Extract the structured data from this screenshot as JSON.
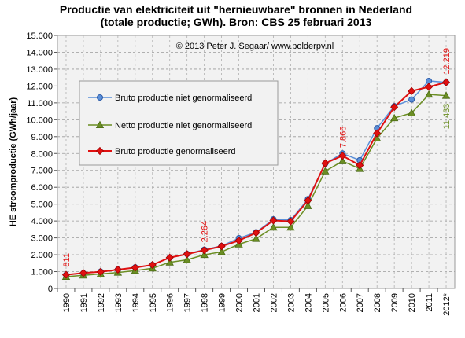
{
  "chart_data": {
    "type": "line",
    "title_line1": "Productie van elektriciteit uit \"hernieuwbare\" bronnen in Nederland",
    "title_line2": "(totale productie; GWh). Bron: CBS 25 februari 2013",
    "copyright": "© 2013 Peter J. Segaar/ www.polderpv.nl",
    "ylabel": "HE stroomproductie (GWh/jaar)",
    "xlabel": "",
    "ylim": [
      0,
      15000
    ],
    "y_ticks": [
      0,
      1000,
      2000,
      3000,
      4000,
      5000,
      6000,
      7000,
      8000,
      9000,
      10000,
      11000,
      12000,
      13000,
      14000,
      15000
    ],
    "y_tick_labels": [
      "0",
      "1.000",
      "2.000",
      "3.000",
      "4.000",
      "5.000",
      "6.000",
      "7.000",
      "8.000",
      "9.000",
      "10.000",
      "11.000",
      "12.000",
      "13.000",
      "14.000",
      "15.000"
    ],
    "categories": [
      "1990",
      "1991",
      "1992",
      "1993",
      "1994",
      "1995",
      "1996",
      "1997",
      "1998",
      "1999",
      "2000",
      "2001",
      "2002",
      "2003",
      "2004",
      "2005",
      "2006",
      "2007",
      "2008",
      "2009",
      "2010",
      "2011",
      "2012*"
    ],
    "grid": true,
    "legend_position": "upper-left",
    "series": [
      {
        "name": "Bruto productie niet genormaliseerd",
        "color": "#5b8fd8",
        "marker": "circle",
        "values": [
          811,
          900,
          1000,
          1120,
          1250,
          1400,
          1830,
          2050,
          2300,
          2520,
          2980,
          3330,
          4100,
          4050,
          5300,
          7400,
          8000,
          7600,
          9500,
          10800,
          11200,
          12300,
          12219
        ]
      },
      {
        "name": "Netto productie niet genormaliseerd",
        "color": "#6b8e23",
        "marker": "triangle",
        "values": [
          700,
          780,
          860,
          950,
          1060,
          1200,
          1550,
          1700,
          2000,
          2170,
          2620,
          2950,
          3620,
          3620,
          4900,
          6950,
          7550,
          7100,
          8900,
          10100,
          10400,
          11500,
          11433
        ]
      },
      {
        "name": "Bruto productie genormaliseerd",
        "color": "#e01010",
        "marker": "diamond",
        "values": [
          811,
          920,
          990,
          1120,
          1240,
          1400,
          1830,
          2040,
          2264,
          2500,
          2840,
          3300,
          4030,
          3980,
          5220,
          7420,
          7866,
          7300,
          9200,
          10750,
          11700,
          11950,
          12219
        ]
      }
    ],
    "annotations": [
      {
        "text": "811",
        "category": "1990",
        "value": 811,
        "color": "#e01010"
      },
      {
        "text": "2.264",
        "category": "1998",
        "value": 2264,
        "color": "#e01010"
      },
      {
        "text": "7.866",
        "category": "2006",
        "value": 7866,
        "color": "#e01010"
      },
      {
        "text": "12.219",
        "category": "2012*",
        "value": 12219,
        "color": "#e01010"
      },
      {
        "text": "11.433",
        "category": "2012*",
        "value": 11433,
        "color": "#6b8e23"
      }
    ]
  }
}
